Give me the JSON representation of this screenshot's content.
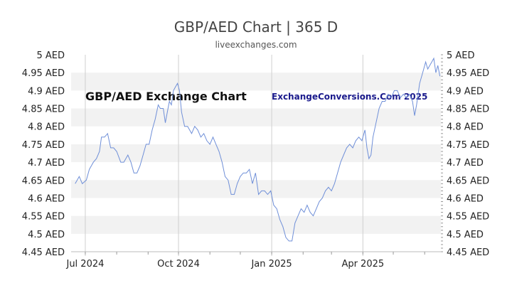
{
  "chart_data": {
    "type": "line",
    "title": "GBP/AED Chart | 365 D",
    "subtitle": "liveexchanges.com",
    "watermarks": [
      "GBP/AED Exchange Chart",
      "ExchangeConversions.Com 2025"
    ],
    "unit": "AED",
    "ylim": [
      4.45,
      5.0
    ],
    "y_ticks": [
      "5 AED",
      "4.95 AED",
      "4.9 AED",
      "4.85 AED",
      "4.8 AED",
      "4.75 AED",
      "4.7 AED",
      "4.65 AED",
      "4.6 AED",
      "4.55 AED",
      "4.5 AED",
      "4.45 AED"
    ],
    "y_tick_values": [
      5.0,
      4.95,
      4.9,
      4.85,
      4.8,
      4.75,
      4.7,
      4.65,
      4.6,
      4.55,
      4.5,
      4.45
    ],
    "xlim": [
      "2024-06-17",
      "2025-06-17"
    ],
    "x_ticks": [
      {
        "date": "2024-07-01",
        "label": "Jul 2024"
      },
      {
        "date": "2024-10-01",
        "label": "Oct 2024"
      },
      {
        "date": "2025-01-01",
        "label": "Jan 2025"
      },
      {
        "date": "2025-04-01",
        "label": "Apr 2025"
      }
    ],
    "grid": "horizontal bands and vertical lines",
    "line_color": "#6f8fd8",
    "band_color": "#f2f2f2",
    "grid_color": "#cfcfcf",
    "series": [
      {
        "points": [
          [
            "2024-06-21",
            4.64
          ],
          [
            "2024-06-25",
            4.66
          ],
          [
            "2024-06-28",
            4.64
          ],
          [
            "2024-07-02",
            4.65
          ],
          [
            "2024-07-05",
            4.68
          ],
          [
            "2024-07-09",
            4.7
          ],
          [
            "2024-07-12",
            4.71
          ],
          [
            "2024-07-15",
            4.73
          ],
          [
            "2024-07-17",
            4.77
          ],
          [
            "2024-07-20",
            4.77
          ],
          [
            "2024-07-23",
            4.78
          ],
          [
            "2024-07-26",
            4.74
          ],
          [
            "2024-07-29",
            4.74
          ],
          [
            "2024-08-01",
            4.73
          ],
          [
            "2024-08-05",
            4.7
          ],
          [
            "2024-08-08",
            4.7
          ],
          [
            "2024-08-12",
            4.72
          ],
          [
            "2024-08-15",
            4.7
          ],
          [
            "2024-08-18",
            4.67
          ],
          [
            "2024-08-21",
            4.67
          ],
          [
            "2024-08-24",
            4.69
          ],
          [
            "2024-08-27",
            4.72
          ],
          [
            "2024-08-30",
            4.75
          ],
          [
            "2024-09-02",
            4.75
          ],
          [
            "2024-09-05",
            4.79
          ],
          [
            "2024-09-08",
            4.82
          ],
          [
            "2024-09-11",
            4.86
          ],
          [
            "2024-09-13",
            4.85
          ],
          [
            "2024-09-16",
            4.85
          ],
          [
            "2024-09-18",
            4.81
          ],
          [
            "2024-09-20",
            4.84
          ],
          [
            "2024-09-22",
            4.87
          ],
          [
            "2024-09-24",
            4.86
          ],
          [
            "2024-09-26",
            4.9
          ],
          [
            "2024-09-28",
            4.91
          ],
          [
            "2024-09-30",
            4.92
          ],
          [
            "2024-10-02",
            4.9
          ],
          [
            "2024-10-04",
            4.84
          ],
          [
            "2024-10-07",
            4.8
          ],
          [
            "2024-10-10",
            4.8
          ],
          [
            "2024-10-14",
            4.78
          ],
          [
            "2024-10-17",
            4.8
          ],
          [
            "2024-10-20",
            4.79
          ],
          [
            "2024-10-23",
            4.77
          ],
          [
            "2024-10-26",
            4.78
          ],
          [
            "2024-10-29",
            4.76
          ],
          [
            "2024-11-01",
            4.75
          ],
          [
            "2024-11-04",
            4.77
          ],
          [
            "2024-11-07",
            4.75
          ],
          [
            "2024-11-10",
            4.73
          ],
          [
            "2024-11-13",
            4.7
          ],
          [
            "2024-11-16",
            4.66
          ],
          [
            "2024-11-19",
            4.65
          ],
          [
            "2024-11-22",
            4.61
          ],
          [
            "2024-11-25",
            4.61
          ],
          [
            "2024-11-28",
            4.64
          ],
          [
            "2024-12-01",
            4.66
          ],
          [
            "2024-12-04",
            4.67
          ],
          [
            "2024-12-07",
            4.67
          ],
          [
            "2024-12-10",
            4.68
          ],
          [
            "2024-12-13",
            4.64
          ],
          [
            "2024-12-16",
            4.67
          ],
          [
            "2024-12-19",
            4.61
          ],
          [
            "2024-12-22",
            4.62
          ],
          [
            "2024-12-25",
            4.62
          ],
          [
            "2024-12-28",
            4.61
          ],
          [
            "2024-12-31",
            4.62
          ],
          [
            "2025-01-03",
            4.58
          ],
          [
            "2025-01-06",
            4.57
          ],
          [
            "2025-01-09",
            4.54
          ],
          [
            "2025-01-12",
            4.52
          ],
          [
            "2025-01-15",
            4.49
          ],
          [
            "2025-01-18",
            4.48
          ],
          [
            "2025-01-21",
            4.48
          ],
          [
            "2025-01-24",
            4.53
          ],
          [
            "2025-01-27",
            4.55
          ],
          [
            "2025-01-30",
            4.57
          ],
          [
            "2025-02-02",
            4.56
          ],
          [
            "2025-02-05",
            4.58
          ],
          [
            "2025-02-08",
            4.56
          ],
          [
            "2025-02-11",
            4.55
          ],
          [
            "2025-02-14",
            4.57
          ],
          [
            "2025-02-17",
            4.59
          ],
          [
            "2025-02-20",
            4.6
          ],
          [
            "2025-02-23",
            4.62
          ],
          [
            "2025-02-26",
            4.63
          ],
          [
            "2025-03-01",
            4.62
          ],
          [
            "2025-03-04",
            4.64
          ],
          [
            "2025-03-07",
            4.67
          ],
          [
            "2025-03-10",
            4.7
          ],
          [
            "2025-03-13",
            4.72
          ],
          [
            "2025-03-16",
            4.74
          ],
          [
            "2025-03-19",
            4.75
          ],
          [
            "2025-03-22",
            4.74
          ],
          [
            "2025-03-25",
            4.76
          ],
          [
            "2025-03-28",
            4.77
          ],
          [
            "2025-03-31",
            4.76
          ],
          [
            "2025-04-03",
            4.79
          ],
          [
            "2025-04-05",
            4.74
          ],
          [
            "2025-04-07",
            4.71
          ],
          [
            "2025-04-09",
            4.72
          ],
          [
            "2025-04-11",
            4.77
          ],
          [
            "2025-04-14",
            4.81
          ],
          [
            "2025-04-17",
            4.85
          ],
          [
            "2025-04-20",
            4.87
          ],
          [
            "2025-04-23",
            4.87
          ],
          [
            "2025-04-26",
            4.89
          ],
          [
            "2025-04-29",
            4.88
          ],
          [
            "2025-05-02",
            4.9
          ],
          [
            "2025-05-05",
            4.9
          ],
          [
            "2025-05-08",
            4.88
          ],
          [
            "2025-05-11",
            4.89
          ],
          [
            "2025-05-14",
            4.88
          ],
          [
            "2025-05-17",
            4.89
          ],
          [
            "2025-05-20",
            4.87
          ],
          [
            "2025-05-22",
            4.83
          ],
          [
            "2025-05-24",
            4.86
          ],
          [
            "2025-05-27",
            4.92
          ],
          [
            "2025-05-30",
            4.95
          ],
          [
            "2025-06-02",
            4.98
          ],
          [
            "2025-06-04",
            4.96
          ],
          [
            "2025-06-06",
            4.97
          ],
          [
            "2025-06-08",
            4.98
          ],
          [
            "2025-06-10",
            4.99
          ],
          [
            "2025-06-12",
            4.95
          ],
          [
            "2025-06-14",
            4.97
          ],
          [
            "2025-06-16",
            4.94
          ]
        ]
      }
    ]
  }
}
